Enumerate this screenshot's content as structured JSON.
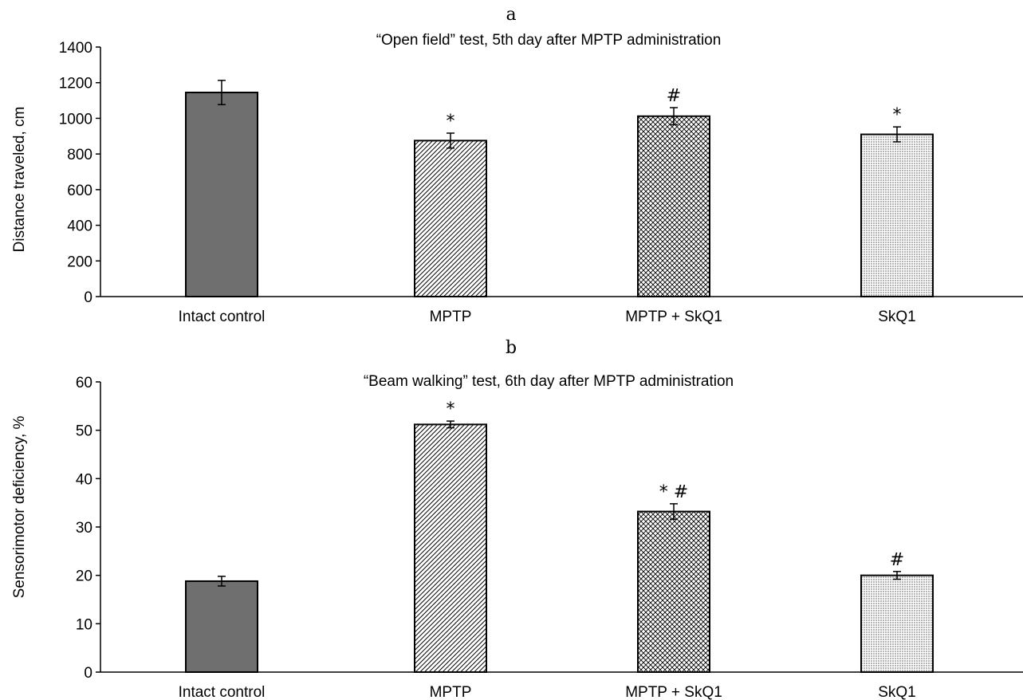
{
  "chart_data": [
    {
      "type": "bar",
      "panel_letter": "a",
      "title": "“Open field” test, 5th day after MPTP administration",
      "ylabel": "Distance traveled, cm",
      "xlabel": "",
      "ylim": [
        0,
        1400
      ],
      "yticks": [
        0,
        200,
        400,
        600,
        800,
        1000,
        1200,
        1400
      ],
      "categories": [
        "Intact control",
        "MPTP",
        "MPTP + SkQ1",
        "SkQ1"
      ],
      "values": [
        1145,
        875,
        1012,
        910
      ],
      "errors": [
        68,
        42,
        48,
        42
      ],
      "significance": [
        "",
        "*",
        "#",
        "*"
      ],
      "patterns": [
        "solid-gray",
        "diagonal-hatch",
        "crosshatch",
        "dots"
      ],
      "grid": false
    },
    {
      "type": "bar",
      "panel_letter": "b",
      "title": "“Beam walking” test, 6th day after MPTP administration",
      "ylabel": "Sensorimotor deficiency, %",
      "xlabel": "",
      "ylim": [
        0,
        60
      ],
      "yticks": [
        0,
        10,
        20,
        30,
        40,
        50,
        60
      ],
      "categories": [
        "Intact control",
        "MPTP",
        "MPTP + SkQ1",
        "SkQ1"
      ],
      "values": [
        18.8,
        51.2,
        33.2,
        20.0
      ],
      "errors": [
        1.0,
        0.7,
        1.6,
        0.8
      ],
      "significance": [
        "",
        "*",
        "*#",
        "#"
      ],
      "patterns": [
        "solid-gray",
        "diagonal-hatch",
        "crosshatch",
        "dots"
      ],
      "grid": false
    }
  ],
  "colors": {
    "solid_bar": "#6f6f6f",
    "outline": "#000000",
    "background": "#ffffff"
  }
}
